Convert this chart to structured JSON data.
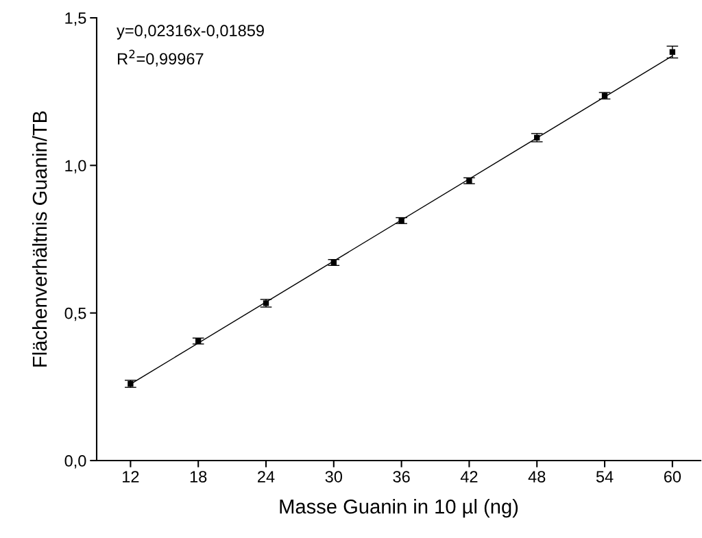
{
  "chart_data": {
    "type": "scatter",
    "xlabel": "Masse Guanin in 10 µl (ng)",
    "ylabel": "Flächenverhältnis Guanin/TB",
    "annotations": [
      "y=0,02316x-0,01859",
      "R$^{2}$=0,99967"
    ],
    "xlim": [
      9,
      62.5
    ],
    "xticks": [
      12,
      18,
      24,
      30,
      36,
      42,
      48,
      54,
      60
    ],
    "ylim": [
      0,
      1.5
    ],
    "yticks": [
      {
        "value": 0,
        "label": "0,0"
      },
      {
        "value": 0.5,
        "label": "0,5"
      },
      {
        "value": 1.0,
        "label": "1,0"
      },
      {
        "value": 1.5,
        "label": "1,5"
      }
    ],
    "grid": false,
    "legend": false,
    "series": [
      {
        "color": "#000000",
        "marker": "square",
        "x": [
          12,
          18,
          24,
          30,
          36,
          42,
          48,
          54,
          60
        ],
        "values": [
          0.26,
          0.405,
          0.533,
          0.671,
          0.813,
          0.948,
          1.094,
          1.236,
          1.384
        ],
        "errors": [
          0.012,
          0.01,
          0.013,
          0.01,
          0.01,
          0.01,
          0.014,
          0.011,
          0.02
        ]
      },
      {
        "type": "line",
        "color": "#000000",
        "line_style": "solid",
        "marker": "none",
        "x": [
          12,
          60
        ],
        "values": [
          0.259,
          1.371
        ]
      }
    ]
  }
}
